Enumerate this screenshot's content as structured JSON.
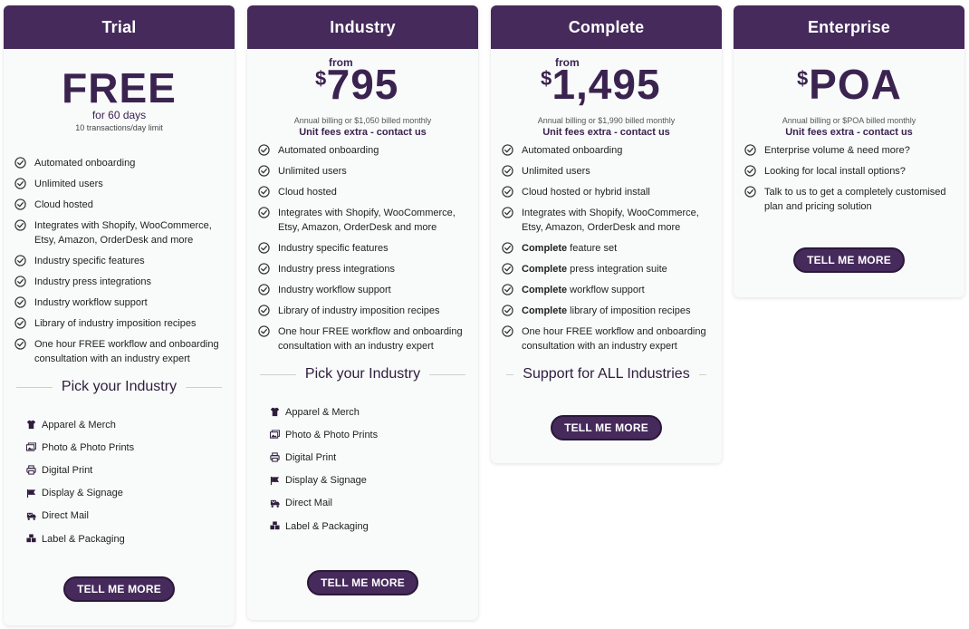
{
  "plans": [
    {
      "title": "Trial",
      "price": "FREE",
      "subtitle": "for 60 days",
      "limit": "10 transactions/day limit",
      "features": [
        "Automated onboarding",
        "Unlimited users",
        "Cloud hosted",
        "Integrates with Shopify, WooCommerce, Etsy, Amazon, OrderDesk and more",
        "Industry specific features",
        "Industry press integrations",
        "Industry workflow support",
        "Library of industry imposition recipes",
        "One hour FREE workflow and onboarding consultation with an industry expert"
      ],
      "section_title": "Pick your Industry",
      "industries": [
        "Apparel & Merch",
        "Photo & Photo Prints",
        "Digital Print",
        "Display & Signage",
        "Direct Mail",
        "Label & Packaging"
      ],
      "cta": "TELL ME MORE"
    },
    {
      "title": "Industry",
      "from": "from",
      "currency": "$",
      "price": "795",
      "billing_note": "Annual billing or $1,050 billed monthly",
      "unit_fees": "Unit fees extra - contact us",
      "features": [
        "Automated onboarding",
        "Unlimited users",
        "Cloud hosted",
        "Integrates with Shopify, WooCommerce, Etsy, Amazon, OrderDesk and more",
        "Industry specific features",
        "Industry press integrations",
        "Industry workflow support",
        "Library of industry imposition recipes",
        "One hour FREE workflow and onboarding consultation with an industry expert"
      ],
      "section_title": "Pick your Industry",
      "industries": [
        "Apparel & Merch",
        "Photo & Photo Prints",
        "Digital Print",
        "Display & Signage",
        "Direct Mail",
        "Label & Packaging"
      ],
      "cta": "TELL ME MORE"
    },
    {
      "title": "Complete",
      "from": "from",
      "currency": "$",
      "price": "1,495",
      "billing_note": "Annual billing or $1,990 billed monthly",
      "unit_fees": "Unit fees extra - contact us",
      "features": [
        {
          "bold": "",
          "text": "Automated onboarding"
        },
        {
          "bold": "",
          "text": "Unlimited users"
        },
        {
          "bold": "",
          "text": "Cloud hosted or hybrid install"
        },
        {
          "bold": "",
          "text": "Integrates with Shopify, WooCommerce, Etsy, Amazon, OrderDesk and more"
        },
        {
          "bold": "Complete",
          "text": " feature set"
        },
        {
          "bold": "Complete",
          "text": " press integration suite"
        },
        {
          "bold": "Complete",
          "text": " workflow support"
        },
        {
          "bold": "Complete",
          "text": " library of imposition recipes"
        },
        {
          "bold": "",
          "text": "One hour FREE workflow and onboarding consultation with an industry expert"
        }
      ],
      "section_title": "Support for ALL Industries",
      "cta": "TELL ME MORE"
    },
    {
      "title": "Enterprise",
      "currency": "$",
      "price": "POA",
      "billing_note": "Annual billing or $POA billed monthly",
      "unit_fees": "Unit fees extra - contact us",
      "features": [
        "Enterprise volume & need more?",
        "Looking for local install options?",
        "Talk to us to get a completely customised plan and pricing solution"
      ],
      "cta": "TELL ME MORE"
    }
  ],
  "icons": {
    "check": "check-circle-icon",
    "industries": [
      "tshirt-icon",
      "photos-icon",
      "printer-icon",
      "flag-icon",
      "mail-truck-icon",
      "boxes-icon"
    ]
  },
  "colors": {
    "brand": "#452a5b",
    "brand_text": "#3b2350"
  }
}
